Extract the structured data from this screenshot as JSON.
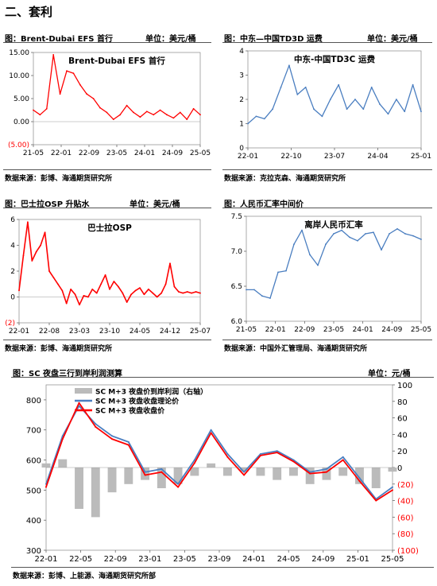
{
  "page": {
    "section_title": "二、套利"
  },
  "panels": [
    {
      "header_title": "图：Brent-Dubai EFS 首行",
      "header_unit": "单位：美元/桶",
      "source": "数据来源：彭博、海通期货研究所"
    },
    {
      "header_title": "图：中东—中国TD3D 运费",
      "header_unit": "单位：美元/桶",
      "source": "数据来源：克拉克森、海通期货研究所"
    },
    {
      "header_title": "图：巴士拉OSP 升贴水",
      "header_unit": "单位：美元/桶",
      "source": "数据来源：彭博、海通期货研究所"
    },
    {
      "header_title": "图：人民币汇率中间价",
      "header_unit": "",
      "source": "数据来源：中国外汇管理局、海通期货研究所"
    },
    {
      "header_title": "图：SC 夜盘三行到岸利润测算",
      "header_unit": "单位：元/桶",
      "source": "数据来源：彭博、上能源、海通期货研究所部"
    }
  ],
  "chart_data": [
    {
      "type": "line",
      "title": "Brent-Dubai EFS 首行",
      "color": "#ff0000",
      "ylim": [
        -5,
        15
      ],
      "yticks": [
        "15.00",
        "10.00",
        "5.00",
        "0.00",
        "(5.00)"
      ],
      "xticks": [
        "21-05",
        "22-01",
        "22-09",
        "23-05",
        "24-01",
        "24-09",
        "25-05"
      ],
      "x": [
        "21-05",
        "21-09",
        "22-01",
        "22-03",
        "22-04",
        "22-05",
        "22-06",
        "22-07",
        "22-09",
        "22-11",
        "23-01",
        "23-03",
        "23-05",
        "23-07",
        "23-09",
        "23-11",
        "24-01",
        "24-03",
        "24-05",
        "24-07",
        "24-09",
        "24-11",
        "25-01",
        "25-03",
        "25-05",
        "25-07"
      ],
      "values": [
        2.5,
        1.5,
        2.8,
        14.5,
        6.0,
        11.0,
        10.5,
        8.0,
        6.0,
        5.0,
        3.0,
        2.0,
        0.5,
        1.5,
        3.5,
        2.0,
        1.0,
        2.2,
        1.5,
        2.5,
        1.5,
        0.8,
        2.0,
        0.5,
        2.8,
        1.5
      ]
    },
    {
      "type": "line",
      "title": "中东-中国TD3C 运费",
      "color": "#4a7ec0",
      "ylim": [
        0,
        4
      ],
      "yticks": [
        "4",
        "3",
        "2",
        "1",
        "0"
      ],
      "xticks": [
        "22-01",
        "22-10",
        "23-07",
        "24-04",
        "25-01"
      ],
      "x": [
        "22-01",
        "22-03",
        "22-05",
        "22-07",
        "22-09",
        "22-10",
        "22-11",
        "23-01",
        "23-03",
        "23-05",
        "23-07",
        "23-09",
        "23-11",
        "24-01",
        "24-03",
        "24-05",
        "24-07",
        "24-09",
        "24-11",
        "25-01",
        "25-03",
        "25-05"
      ],
      "values": [
        1.0,
        1.3,
        1.2,
        1.6,
        2.5,
        3.4,
        2.2,
        2.5,
        1.6,
        1.3,
        2.0,
        2.6,
        1.6,
        2.0,
        1.6,
        2.5,
        1.8,
        1.4,
        2.0,
        1.5,
        2.6,
        1.5
      ]
    },
    {
      "type": "line",
      "title": "巴士拉OSP",
      "color": "#ff0000",
      "ylim": [
        -2,
        6
      ],
      "yticks": [
        "6",
        "4",
        "2",
        "0",
        "(2)"
      ],
      "xticks": [
        "22-01",
        "22-08",
        "23-03",
        "23-10",
        "24-05",
        "24-12",
        "25-07"
      ],
      "x": [
        "22-01",
        "22-02",
        "22-03",
        "22-04",
        "22-05",
        "22-06",
        "22-07",
        "22-08",
        "22-09",
        "22-10",
        "22-11",
        "22-12",
        "23-01",
        "23-02",
        "23-03",
        "23-04",
        "23-05",
        "23-06",
        "23-07",
        "23-08",
        "23-09",
        "23-10",
        "23-11",
        "23-12",
        "24-01",
        "24-02",
        "24-03",
        "24-04",
        "24-05",
        "24-06",
        "24-07",
        "24-08",
        "24-09",
        "24-10",
        "24-11",
        "24-12",
        "25-01",
        "25-02",
        "25-03",
        "25-04",
        "25-05",
        "25-06",
        "25-07"
      ],
      "values": [
        0.5,
        3.2,
        5.8,
        2.8,
        3.5,
        4.0,
        5.0,
        2.0,
        1.5,
        1.0,
        0.5,
        -0.5,
        0.6,
        0.2,
        -0.6,
        0.1,
        0.0,
        0.6,
        0.3,
        1.0,
        1.7,
        0.6,
        1.2,
        0.8,
        0.3,
        -0.4,
        0.2,
        0.5,
        0.7,
        0.2,
        0.6,
        0.3,
        0.0,
        0.3,
        1.0,
        2.6,
        0.8,
        0.4,
        0.3,
        0.4,
        0.3,
        0.4,
        0.3
      ]
    },
    {
      "type": "line",
      "title": "离岸人民币汇率",
      "color": "#4a7ec0",
      "ylim": [
        6.0,
        7.5
      ],
      "yticks": [
        "7.5",
        "7.0",
        "6.5",
        "6.0"
      ],
      "xticks": [
        "21-05",
        "22-01",
        "22-09",
        "23-05",
        "24-01",
        "24-09",
        "25-05"
      ],
      "x": [
        "21-05",
        "21-09",
        "22-01",
        "22-04",
        "22-05",
        "22-07",
        "22-09",
        "22-10",
        "22-12",
        "23-02",
        "23-05",
        "23-07",
        "23-09",
        "23-11",
        "24-01",
        "24-04",
        "24-07",
        "24-09",
        "24-11",
        "25-01",
        "25-03",
        "25-05",
        "25-07"
      ],
      "values": [
        6.45,
        6.45,
        6.36,
        6.33,
        6.7,
        6.72,
        7.1,
        7.3,
        6.95,
        6.8,
        7.1,
        7.25,
        7.3,
        7.2,
        7.15,
        7.25,
        7.27,
        7.02,
        7.25,
        7.32,
        7.25,
        7.22,
        7.17
      ]
    },
    {
      "type": "line",
      "title": "",
      "legend": "top-left",
      "xticks": [
        "22-01",
        "22-05",
        "22-09",
        "23-01",
        "23-05",
        "23-09",
        "24-01",
        "24-05",
        "24-09",
        "25-01",
        "25-05"
      ],
      "left_axis": {
        "ylim": [
          300,
          850
        ],
        "yticks": [
          "300",
          "400",
          "500",
          "600",
          "700",
          "800"
        ]
      },
      "right_axis": {
        "ylim": [
          -100,
          100
        ],
        "yticks": [
          "100",
          "80",
          "60",
          "40",
          "20",
          "0",
          "(20)",
          "(40)",
          "(60)",
          "(80)",
          "(100)"
        ],
        "color": "#ff0000"
      },
      "x": [
        "22-01",
        "22-03",
        "22-05",
        "22-07",
        "22-09",
        "22-11",
        "23-01",
        "23-03",
        "23-05",
        "23-07",
        "23-09",
        "23-11",
        "24-01",
        "24-03",
        "24-05",
        "24-07",
        "24-09",
        "24-11",
        "25-01",
        "25-03",
        "25-05",
        "25-07"
      ],
      "series": [
        {
          "name": "SC M+3 夜盘价到岸利润（右轴）",
          "type": "bar",
          "axis": "right",
          "color": "#bbbbbb",
          "values": [
            5,
            10,
            -50,
            -60,
            -30,
            -20,
            -15,
            -25,
            -20,
            -10,
            5,
            -10,
            -5,
            -10,
            -15,
            -10,
            -20,
            -15,
            -10,
            -20,
            -25,
            -5
          ]
        },
        {
          "name": "SC M+3 夜盘收盘理论价",
          "type": "line",
          "axis": "left",
          "color": "#4a7ec0",
          "values": [
            520,
            680,
            780,
            720,
            680,
            660,
            560,
            570,
            520,
            600,
            700,
            620,
            560,
            620,
            630,
            600,
            560,
            570,
            610,
            540,
            470,
            510
          ]
        },
        {
          "name": "SC M+3 夜盘收盘价",
          "type": "line",
          "axis": "left",
          "color": "#ff0000",
          "values": [
            510,
            670,
            790,
            710,
            670,
            650,
            550,
            560,
            510,
            590,
            690,
            610,
            550,
            615,
            625,
            595,
            555,
            560,
            600,
            530,
            465,
            500
          ]
        }
      ]
    }
  ]
}
